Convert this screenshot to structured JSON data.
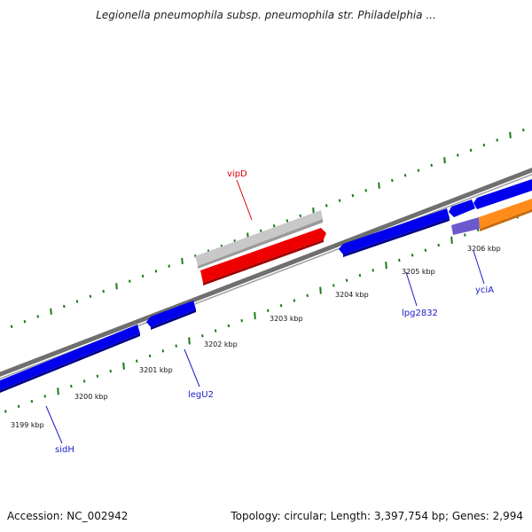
{
  "title": "Legionella pneumophila subsp. pneumophila str. Philadelphia ...",
  "footer": {
    "accession": "Accession: NC_002942",
    "summary": "Topology: circular; Length: 3,397,754 bp; Genes: 2,994"
  },
  "kbp_labels": [
    "3199 kbp",
    "3200 kbp",
    "3201 kbp",
    "3202 kbp",
    "3203 kbp",
    "3204 kbp",
    "3205 kbp",
    "3206 kbp"
  ],
  "gene_labels": {
    "vipD": "vipD",
    "sidH": "sidH",
    "legU2": "legU2",
    "lpg2832": "lpg2832",
    "yciA": "yciA"
  },
  "colors": {
    "forward_cds": "#0000ee",
    "highlight_cds": "#ee0000",
    "highlight_shadow": "#c8c8c8",
    "orange_cds": "#ff8c1a",
    "purple_cds": "#6a5acd",
    "backbone": "#808080",
    "ticks": "#1a7a1a",
    "gene_label_blue": "#1a1acc",
    "gene_label_red": "#dd0000"
  }
}
